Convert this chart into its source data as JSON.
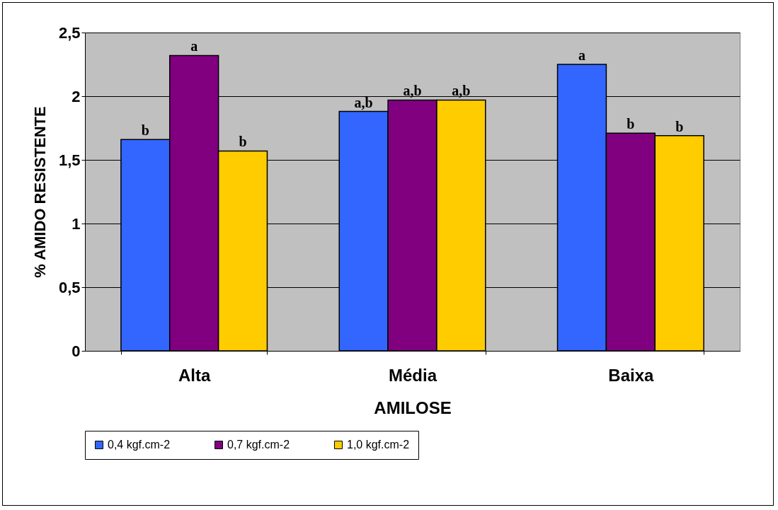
{
  "chart_data": {
    "type": "bar",
    "xlabel": "AMILOSE",
    "ylabel": "% AMIDO RESISTENTE",
    "categories": [
      "Alta",
      "Média",
      "Baixa"
    ],
    "series": [
      {
        "name": "0,4 kgf.cm-2",
        "color": "#3366ff",
        "values": [
          1.66,
          1.88,
          2.25
        ],
        "value_labels": [
          "b",
          "a,b",
          "a"
        ]
      },
      {
        "name": "0,7 kgf.cm-2",
        "color": "#800080",
        "values": [
          2.32,
          1.97,
          1.71
        ],
        "value_labels": [
          "a",
          "a,b",
          "b"
        ]
      },
      {
        "name": "1,0 kgf.cm-2",
        "color": "#ffcc00",
        "values": [
          1.57,
          1.97,
          1.69
        ],
        "value_labels": [
          "b",
          "a,b",
          "b"
        ]
      }
    ],
    "ylim": [
      0,
      2.5
    ],
    "yticks": [
      0,
      {
        "value": 0.5,
        "label": "0,5"
      },
      1,
      {
        "value": 1.5,
        "label": "1,5"
      },
      2,
      {
        "value": 2.5,
        "label": "2,5"
      }
    ],
    "grid": "y",
    "legend": "bottom"
  }
}
